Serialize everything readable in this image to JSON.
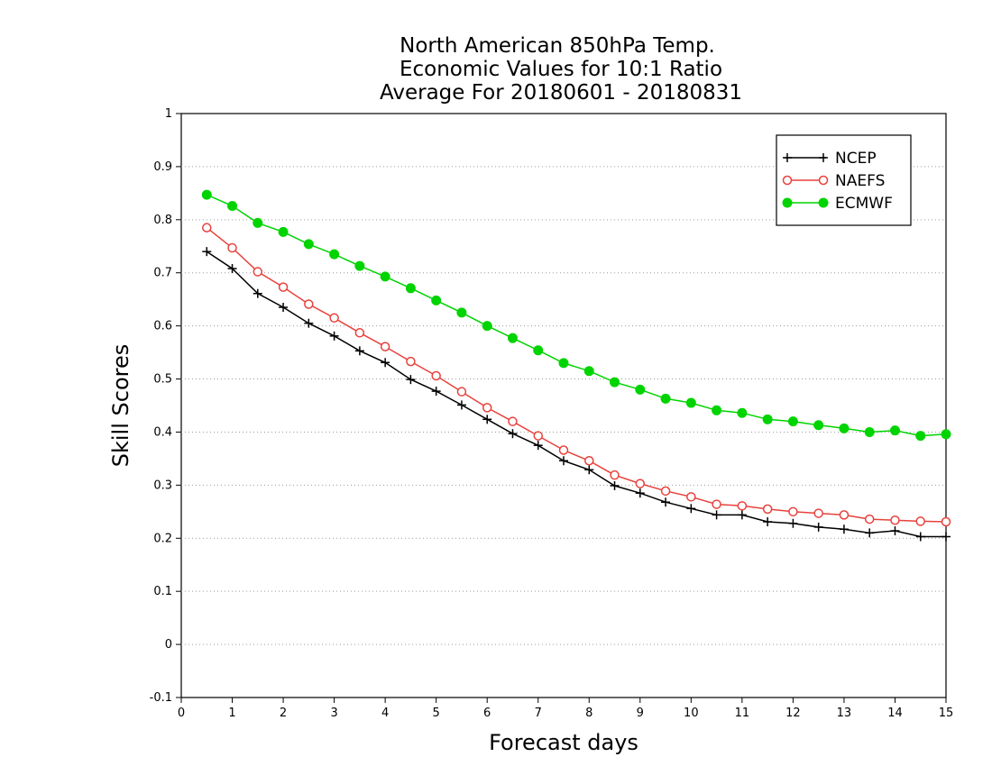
{
  "chart_data": {
    "type": "line",
    "title_lines": [
      "North American 850hPa Temp.",
      "Economic Values for 10:1 Ratio",
      "Average For 20180601 - 20180831"
    ],
    "xlabel": "Forecast days",
    "ylabel": "Skill Scores",
    "xlim": [
      0,
      15
    ],
    "ylim": [
      -0.1,
      1
    ],
    "xticks": [
      0,
      1,
      2,
      3,
      4,
      5,
      6,
      7,
      8,
      9,
      10,
      11,
      12,
      13,
      14,
      15
    ],
    "xtick_labels": [
      "0",
      "1",
      "2",
      "3",
      "4",
      "5",
      "6",
      "7",
      "8",
      "9",
      "10",
      "11",
      "12",
      "13",
      "14",
      "15"
    ],
    "yticks": [
      -0.1,
      0,
      0.1,
      0.2,
      0.3,
      0.4,
      0.5,
      0.6,
      0.7,
      0.8,
      0.9,
      1
    ],
    "ytick_labels": [
      "-0.1",
      "0",
      "0.1",
      "0.2",
      "0.3",
      "0.4",
      "0.5",
      "0.6",
      "0.7",
      "0.8",
      "0.9",
      "1"
    ],
    "grid": "horizontal dotted",
    "legend_position": "top-right",
    "x": [
      0.5,
      1,
      1.5,
      2,
      2.5,
      3,
      3.5,
      4,
      4.5,
      5,
      5.5,
      6,
      6.5,
      7,
      7.5,
      8,
      8.5,
      9,
      9.5,
      10,
      10.5,
      11,
      11.5,
      12,
      12.5,
      13,
      13.5,
      14,
      14.5,
      15
    ],
    "series": [
      {
        "name": "NCEP",
        "color": "#000000",
        "marker": "plus",
        "values": [
          0.74,
          0.708,
          0.661,
          0.635,
          0.605,
          0.581,
          0.553,
          0.531,
          0.499,
          0.477,
          0.451,
          0.424,
          0.397,
          0.375,
          0.346,
          0.329,
          0.299,
          0.285,
          0.268,
          0.256,
          0.244,
          0.244,
          0.231,
          0.228,
          0.221,
          0.217,
          0.21,
          0.214,
          0.203,
          0.203
        ]
      },
      {
        "name": "NAEFS",
        "color": "#e8413c",
        "marker": "open-circle",
        "values": [
          0.785,
          0.747,
          0.702,
          0.673,
          0.641,
          0.615,
          0.587,
          0.561,
          0.533,
          0.506,
          0.476,
          0.446,
          0.42,
          0.393,
          0.366,
          0.346,
          0.319,
          0.303,
          0.289,
          0.278,
          0.264,
          0.261,
          0.255,
          0.25,
          0.247,
          0.244,
          0.236,
          0.234,
          0.232,
          0.231
        ]
      },
      {
        "name": "ECMWF",
        "color": "#00d400",
        "marker": "filled-circle",
        "values": [
          0.847,
          0.826,
          0.794,
          0.777,
          0.754,
          0.735,
          0.713,
          0.693,
          0.671,
          0.648,
          0.625,
          0.6,
          0.577,
          0.554,
          0.53,
          0.515,
          0.494,
          0.48,
          0.463,
          0.455,
          0.441,
          0.436,
          0.424,
          0.42,
          0.413,
          0.407,
          0.4,
          0.403,
          0.393,
          0.396
        ]
      }
    ]
  }
}
